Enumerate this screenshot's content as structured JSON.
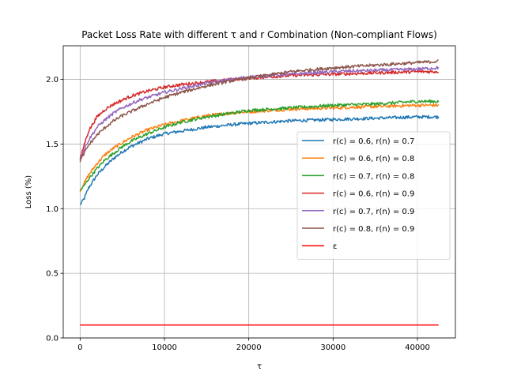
{
  "chart_data": {
    "type": "line",
    "title": "Packet Loss Rate with different τ and r Combination (Non-compliant Flows)",
    "xlabel": "τ",
    "ylabel": "Loss (%)",
    "xlim": [
      -2000,
      44500
    ],
    "ylim": [
      0.0,
      2.26
    ],
    "xticks": [
      0,
      10000,
      20000,
      30000,
      40000
    ],
    "yticks": [
      0.0,
      0.5,
      1.0,
      1.5,
      2.0
    ],
    "xtick_labels": [
      "0",
      "10000",
      "20000",
      "30000",
      "40000"
    ],
    "ytick_labels": [
      "0.0",
      "0.5",
      "1.0",
      "1.5",
      "2.0"
    ],
    "grid": true,
    "legend_position": "center-right",
    "series": [
      {
        "name": "r(c) = 0.6, r(n) = 0.7",
        "color": "#1f77b4",
        "x": [
          0,
          500,
          1000,
          2000,
          3000,
          4000,
          5000,
          6000,
          7000,
          8000,
          10000,
          12000,
          15000,
          18000,
          20000,
          25000,
          30000,
          35000,
          40000,
          42500
        ],
        "y": [
          1.03,
          1.08,
          1.16,
          1.26,
          1.33,
          1.39,
          1.44,
          1.48,
          1.51,
          1.54,
          1.58,
          1.6,
          1.63,
          1.65,
          1.66,
          1.68,
          1.69,
          1.7,
          1.71,
          1.71
        ]
      },
      {
        "name": "r(c) = 0.6, r(n) = 0.8",
        "color": "#ff7f0e",
        "x": [
          0,
          500,
          1000,
          2000,
          3000,
          4000,
          5000,
          6000,
          7000,
          8000,
          10000,
          12000,
          15000,
          18000,
          20000,
          25000,
          30000,
          35000,
          40000,
          42500
        ],
        "y": [
          1.14,
          1.2,
          1.26,
          1.35,
          1.42,
          1.47,
          1.51,
          1.55,
          1.58,
          1.61,
          1.65,
          1.68,
          1.72,
          1.74,
          1.75,
          1.77,
          1.78,
          1.79,
          1.8,
          1.8
        ]
      },
      {
        "name": "r(c) = 0.7, r(n) = 0.8",
        "color": "#2ca02c",
        "x": [
          0,
          500,
          1000,
          2000,
          3000,
          4000,
          5000,
          6000,
          7000,
          8000,
          10000,
          12000,
          15000,
          18000,
          20000,
          25000,
          30000,
          35000,
          40000,
          42500
        ],
        "y": [
          1.14,
          1.18,
          1.23,
          1.31,
          1.38,
          1.43,
          1.48,
          1.52,
          1.55,
          1.58,
          1.63,
          1.67,
          1.71,
          1.74,
          1.76,
          1.78,
          1.8,
          1.81,
          1.83,
          1.83
        ]
      },
      {
        "name": "r(c) = 0.6, r(n) = 0.9",
        "color": "#d62728",
        "x": [
          0,
          500,
          1000,
          2000,
          3000,
          4000,
          5000,
          6000,
          7000,
          8000,
          10000,
          12000,
          15000,
          18000,
          20000,
          25000,
          30000,
          35000,
          40000,
          42500
        ],
        "y": [
          1.38,
          1.5,
          1.6,
          1.71,
          1.77,
          1.81,
          1.84,
          1.87,
          1.89,
          1.91,
          1.94,
          1.96,
          1.98,
          2.0,
          2.01,
          2.03,
          2.04,
          2.05,
          2.06,
          2.06
        ]
      },
      {
        "name": "r(c) = 0.7, r(n) = 0.9",
        "color": "#9467bd",
        "x": [
          0,
          500,
          1000,
          2000,
          3000,
          4000,
          5000,
          6000,
          7000,
          8000,
          10000,
          12000,
          15000,
          18000,
          20000,
          25000,
          30000,
          35000,
          40000,
          42500
        ],
        "y": [
          1.39,
          1.46,
          1.53,
          1.63,
          1.69,
          1.74,
          1.78,
          1.81,
          1.84,
          1.86,
          1.9,
          1.93,
          1.97,
          2.0,
          2.02,
          2.04,
          2.06,
          2.07,
          2.08,
          2.09
        ]
      },
      {
        "name": "r(c) = 0.8, r(n) = 0.9",
        "color": "#8c564b",
        "x": [
          0,
          500,
          1000,
          2000,
          3000,
          4000,
          5000,
          6000,
          7000,
          8000,
          10000,
          12000,
          15000,
          18000,
          20000,
          25000,
          30000,
          35000,
          40000,
          42500
        ],
        "y": [
          1.37,
          1.43,
          1.49,
          1.57,
          1.63,
          1.68,
          1.72,
          1.75,
          1.78,
          1.81,
          1.86,
          1.9,
          1.95,
          1.99,
          2.01,
          2.06,
          2.09,
          2.11,
          2.13,
          2.14
        ]
      },
      {
        "name": "ε",
        "color": "#ff0000",
        "x": [
          0,
          42500
        ],
        "y": [
          0.1,
          0.1
        ]
      }
    ]
  }
}
